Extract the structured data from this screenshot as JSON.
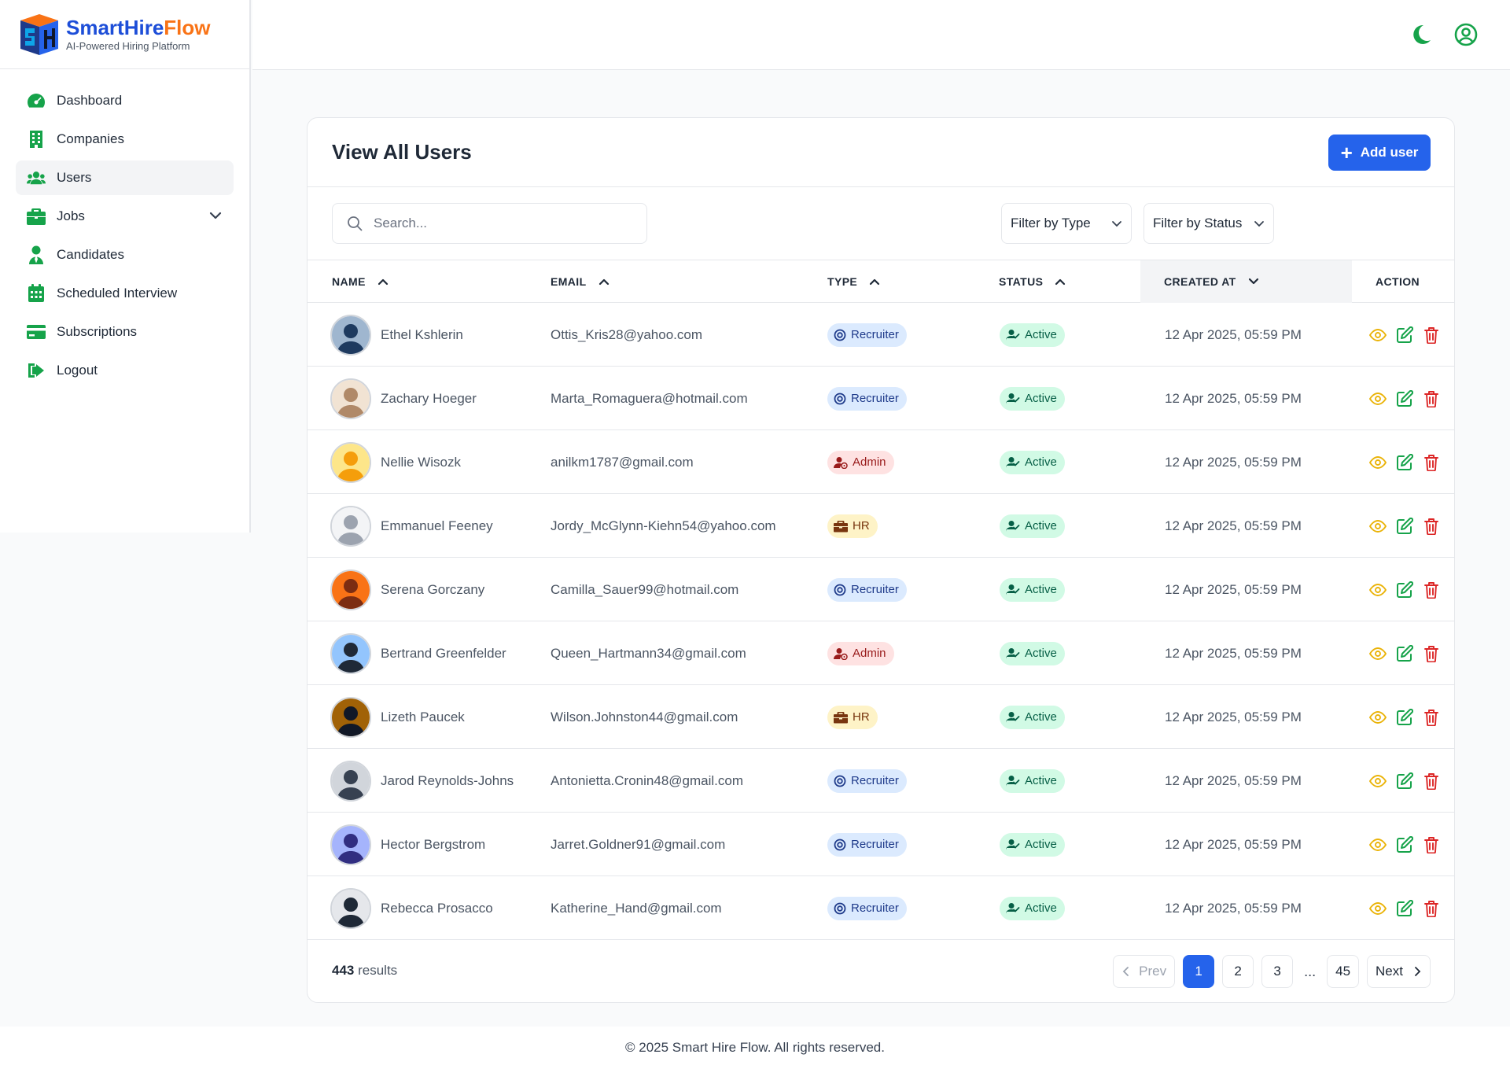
{
  "brand": {
    "name_part1": "SmartHire",
    "name_part2": "Flow",
    "tagline": "AI-Powered Hiring Platform"
  },
  "sidebar": {
    "items": [
      {
        "label": "Dashboard",
        "icon": "gauge-icon",
        "active": false
      },
      {
        "label": "Companies",
        "icon": "building-icon",
        "active": false
      },
      {
        "label": "Users",
        "icon": "users-icon",
        "active": true
      },
      {
        "label": "Jobs",
        "icon": "briefcase-icon",
        "active": false,
        "expandable": true
      },
      {
        "label": "Candidates",
        "icon": "user-tie-icon",
        "active": false
      },
      {
        "label": "Scheduled Interview",
        "icon": "calendar-icon",
        "active": false
      },
      {
        "label": "Subscriptions",
        "icon": "credit-card-icon",
        "active": false
      },
      {
        "label": "Logout",
        "icon": "logout-icon",
        "active": false
      }
    ]
  },
  "topbar": {
    "theme_icon": "moon-icon",
    "profile_icon": "user-circle-icon"
  },
  "page": {
    "title": "View All Users",
    "add_button": "Add user"
  },
  "filters": {
    "search_placeholder": "Search...",
    "type_label": "Filter by Type",
    "status_label": "Filter by Status"
  },
  "table": {
    "columns": [
      "NAME",
      "EMAIL",
      "TYPE",
      "STATUS",
      "CREATED AT",
      "ACTION"
    ],
    "sorted_column": "CREATED AT",
    "rows": [
      {
        "name": "Ethel Kshlerin",
        "email": "Ottis_Kris28@yahoo.com",
        "type": "Recruiter",
        "status": "Active",
        "created": "12 Apr 2025, 05:59 PM"
      },
      {
        "name": "Zachary Hoeger",
        "email": "Marta_Romaguera@hotmail.com",
        "type": "Recruiter",
        "status": "Active",
        "created": "12 Apr 2025, 05:59 PM"
      },
      {
        "name": "Nellie Wisozk",
        "email": "anilkm1787@gmail.com",
        "type": "Admin",
        "status": "Active",
        "created": "12 Apr 2025, 05:59 PM"
      },
      {
        "name": "Emmanuel Feeney",
        "email": "Jordy_McGlynn-Kiehn54@yahoo.com",
        "type": "HR",
        "status": "Active",
        "created": "12 Apr 2025, 05:59 PM"
      },
      {
        "name": "Serena Gorczany",
        "email": "Camilla_Sauer99@hotmail.com",
        "type": "Recruiter",
        "status": "Active",
        "created": "12 Apr 2025, 05:59 PM"
      },
      {
        "name": "Bertrand Greenfelder",
        "email": "Queen_Hartmann34@gmail.com",
        "type": "Admin",
        "status": "Active",
        "created": "12 Apr 2025, 05:59 PM"
      },
      {
        "name": "Lizeth Paucek",
        "email": "Wilson.Johnston44@gmail.com",
        "type": "HR",
        "status": "Active",
        "created": "12 Apr 2025, 05:59 PM"
      },
      {
        "name": "Jarod Reynolds-Johns",
        "email": "Antonietta.Cronin48@gmail.com",
        "type": "Recruiter",
        "status": "Active",
        "created": "12 Apr 2025, 05:59 PM"
      },
      {
        "name": "Hector Bergstrom",
        "email": "Jarret.Goldner91@gmail.com",
        "type": "Recruiter",
        "status": "Active",
        "created": "12 Apr 2025, 05:59 PM"
      },
      {
        "name": "Rebecca Prosacco",
        "email": "Katherine_Hand@gmail.com",
        "type": "Recruiter",
        "status": "Active",
        "created": "12 Apr 2025, 05:59 PM"
      }
    ]
  },
  "pagination": {
    "results_count": "443",
    "results_label": "results",
    "prev": "Prev",
    "next": "Next",
    "pages": [
      "1",
      "2",
      "3"
    ],
    "ellipsis": "...",
    "last": "45",
    "current": "1"
  },
  "footer": {
    "text": "© 2025 Smart Hire Flow. All rights reserved."
  },
  "colors": {
    "primary": "#2563eb",
    "icon_green": "#16a34a",
    "view_yellow": "#eab308",
    "delete_red": "#dc2626"
  }
}
